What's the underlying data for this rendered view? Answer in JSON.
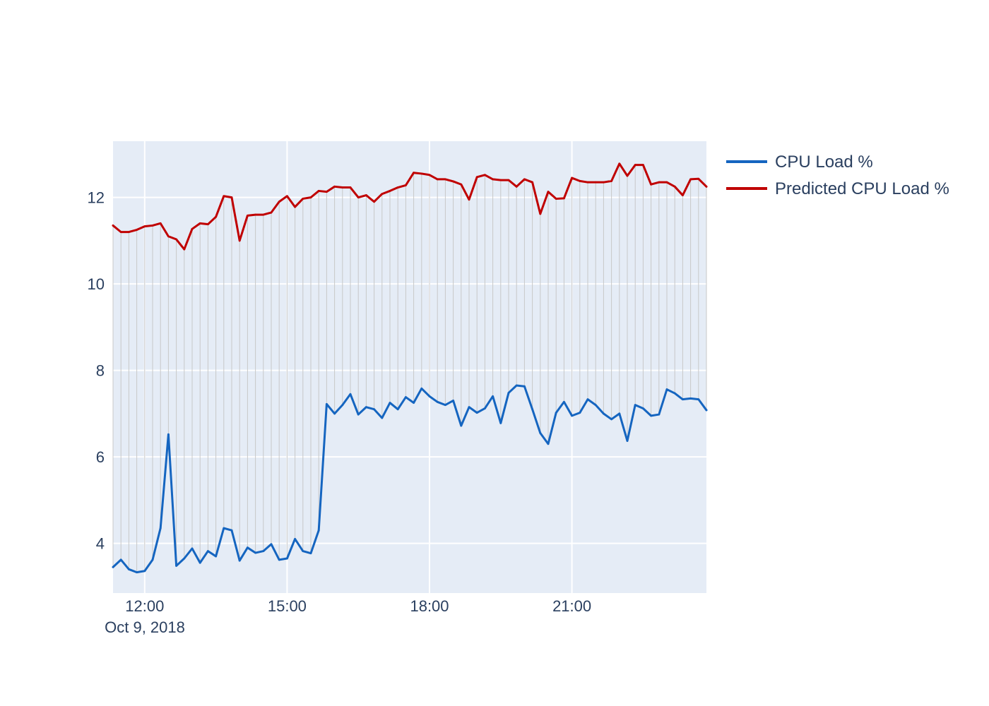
{
  "chart_data": {
    "type": "line",
    "title": "",
    "xlabel": "",
    "ylabel": "",
    "x_tick_labels": [
      "12:00",
      "15:00",
      "18:00",
      "21:00"
    ],
    "x_tick_sublabel": "Oct 9, 2018",
    "y_tick_labels": [
      "4",
      "6",
      "8",
      "10",
      "12"
    ],
    "ylim": [
      2.85,
      13.3
    ],
    "xlim": [
      "2018-10-09 11:20",
      "2018-10-09 23:50"
    ],
    "grid": true,
    "legend_position": "right",
    "background": "#e5ecf6",
    "sample_interval_minutes": 10,
    "connector_color": "#c8c8c8",
    "x": [
      "11:20",
      "11:30",
      "11:40",
      "11:50",
      "12:00",
      "12:10",
      "12:20",
      "12:30",
      "12:40",
      "12:50",
      "13:00",
      "13:10",
      "13:20",
      "13:30",
      "13:40",
      "13:50",
      "14:00",
      "14:10",
      "14:20",
      "14:30",
      "14:40",
      "14:50",
      "15:00",
      "15:10",
      "15:20",
      "15:30",
      "15:40",
      "15:50",
      "16:00",
      "16:10",
      "16:20",
      "16:30",
      "16:40",
      "16:50",
      "17:00",
      "17:10",
      "17:20",
      "17:30",
      "17:40",
      "17:50",
      "18:00",
      "18:10",
      "18:20",
      "18:30",
      "18:40",
      "18:50",
      "19:00",
      "19:10",
      "19:20",
      "19:30",
      "19:40",
      "19:50",
      "20:00",
      "20:10",
      "20:20",
      "20:30",
      "20:40",
      "20:50",
      "21:00",
      "21:10",
      "21:20",
      "21:30",
      "21:40",
      "21:50",
      "22:00",
      "22:10",
      "22:20",
      "22:30",
      "22:40",
      "22:50",
      "23:00",
      "23:10",
      "23:20",
      "23:30",
      "23:40",
      "23:50"
    ],
    "series": [
      {
        "name": "CPU Load %",
        "color": "#1565c0",
        "values": [
          3.45,
          3.62,
          3.4,
          3.33,
          3.36,
          3.62,
          4.35,
          6.52,
          3.48,
          3.65,
          3.88,
          3.55,
          3.82,
          3.7,
          4.35,
          4.3,
          3.6,
          3.9,
          3.78,
          3.82,
          3.98,
          3.62,
          3.65,
          4.1,
          3.82,
          3.77,
          4.3,
          7.22,
          7.0,
          7.2,
          7.45,
          6.98,
          7.15,
          7.1,
          6.9,
          7.25,
          7.1,
          7.38,
          7.25,
          7.58,
          7.4,
          7.27,
          7.2,
          7.3,
          6.72,
          7.15,
          7.02,
          7.12,
          7.4,
          6.78,
          7.48,
          7.65,
          7.63,
          7.1,
          6.55,
          6.3,
          7.02,
          7.27,
          6.95,
          7.02,
          7.33,
          7.2,
          7.0,
          6.87,
          7.0,
          6.37,
          7.2,
          7.12,
          6.95,
          6.98,
          7.56,
          7.47,
          7.33,
          7.35,
          7.33,
          7.08
        ]
      },
      {
        "name": "Predicted CPU Load %",
        "color": "#c00000",
        "values": [
          11.35,
          11.2,
          11.2,
          11.25,
          11.33,
          11.35,
          11.4,
          11.1,
          11.03,
          10.8,
          11.27,
          11.4,
          11.38,
          11.55,
          12.03,
          12.0,
          11.0,
          11.58,
          11.6,
          11.6,
          11.65,
          11.9,
          12.03,
          11.78,
          11.97,
          12.0,
          12.15,
          12.13,
          12.25,
          12.23,
          12.23,
          12.0,
          12.05,
          11.9,
          12.08,
          12.15,
          12.23,
          12.28,
          12.57,
          12.55,
          12.52,
          12.42,
          12.42,
          12.37,
          12.3,
          11.95,
          12.47,
          12.52,
          12.42,
          12.4,
          12.4,
          12.25,
          12.42,
          12.35,
          11.62,
          12.13,
          11.97,
          11.98,
          12.45,
          12.38,
          12.35,
          12.35,
          12.35,
          12.38,
          12.78,
          12.5,
          12.75,
          12.75,
          12.3,
          12.35,
          12.35,
          12.25,
          12.05,
          12.42,
          12.43,
          12.25
        ]
      }
    ]
  }
}
